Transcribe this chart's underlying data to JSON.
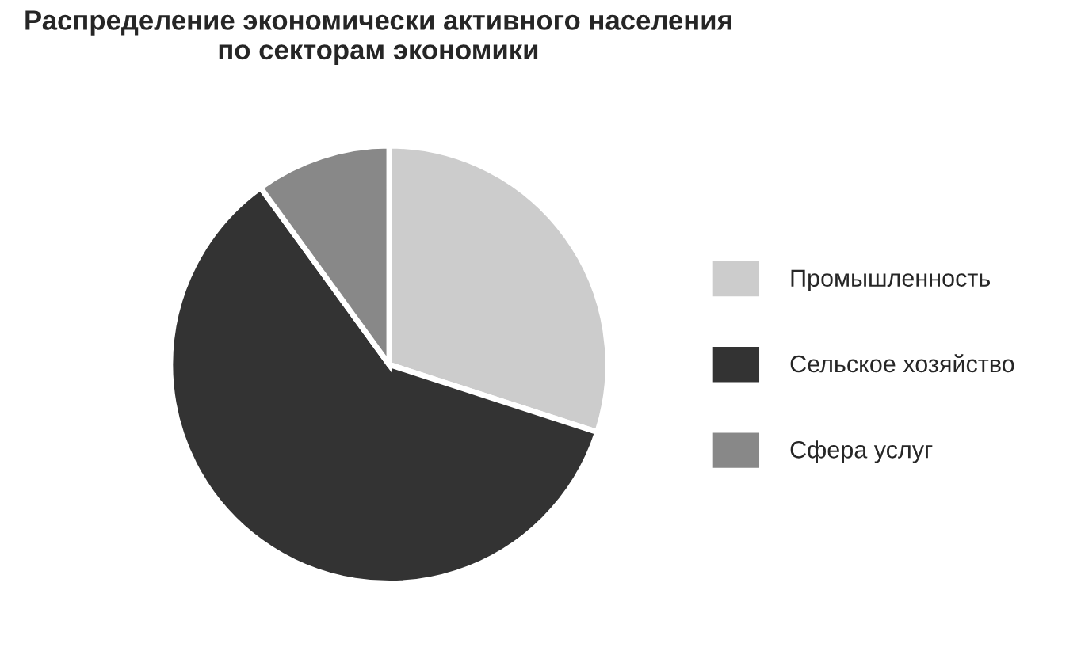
{
  "chart_data": {
    "type": "pie",
    "title": "Распределение экономически активного населения\nпо секторам экономики",
    "categories": [
      "Промышленность",
      "Сельское хозяйство",
      "Сфера услуг"
    ],
    "values": [
      30,
      60,
      10
    ],
    "colors": [
      "#cccccc",
      "#333333",
      "#888888"
    ],
    "legend": "right"
  }
}
